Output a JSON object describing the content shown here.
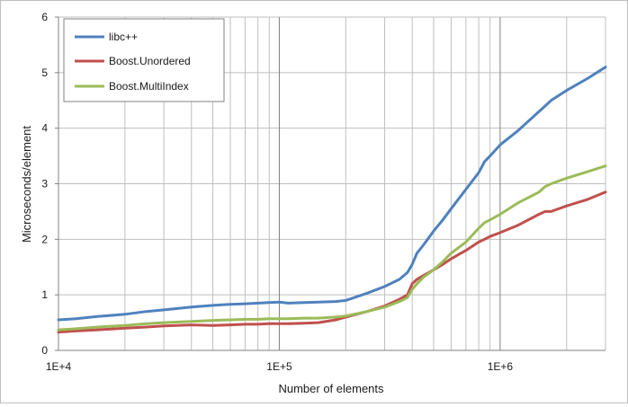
{
  "chart_data": {
    "type": "line",
    "title": "",
    "xlabel": "Number of elements",
    "ylabel": "Microseconds/element",
    "x_scale": "log",
    "xlim": [
      10000,
      3000000
    ],
    "ylim": [
      0,
      6
    ],
    "y_ticks": [
      0,
      1,
      2,
      3,
      4,
      5,
      6
    ],
    "y_tick_labels": [
      "0",
      "1",
      "2",
      "3",
      "4",
      "5",
      "6"
    ],
    "x_major_ticks": [
      10000,
      100000,
      1000000
    ],
    "x_tick_labels": [
      "1E+4",
      "1E+5",
      "1E+6"
    ],
    "grid": true,
    "legend_position": "top-left",
    "colors": {
      "grid": "#bfbfbf",
      "major_grid": "#808080",
      "axis": "#808080"
    },
    "x": [
      10000,
      12000,
      15000,
      20000,
      25000,
      30000,
      40000,
      50000,
      60000,
      70000,
      80000,
      90000,
      100000,
      110000,
      130000,
      150000,
      180000,
      200000,
      250000,
      300000,
      350000,
      380000,
      400000,
      420000,
      450000,
      500000,
      550000,
      600000,
      700000,
      800000,
      850000,
      900000,
      1000000,
      1200000,
      1500000,
      1600000,
      1700000,
      2000000,
      2500000,
      3000000
    ],
    "series": [
      {
        "name": "libc++",
        "color": "#4f81bd",
        "values": [
          0.55,
          0.57,
          0.61,
          0.65,
          0.7,
          0.73,
          0.78,
          0.81,
          0.83,
          0.84,
          0.85,
          0.86,
          0.87,
          0.85,
          0.86,
          0.87,
          0.88,
          0.9,
          1.03,
          1.15,
          1.28,
          1.4,
          1.55,
          1.75,
          1.9,
          2.15,
          2.35,
          2.55,
          2.9,
          3.2,
          3.4,
          3.5,
          3.7,
          3.95,
          4.3,
          4.4,
          4.5,
          4.68,
          4.9,
          5.1
        ]
      },
      {
        "name": "Boost.Unordered",
        "color": "#c0504d",
        "values": [
          0.33,
          0.35,
          0.37,
          0.4,
          0.42,
          0.44,
          0.46,
          0.45,
          0.46,
          0.47,
          0.47,
          0.48,
          0.48,
          0.48,
          0.49,
          0.5,
          0.55,
          0.6,
          0.7,
          0.8,
          0.92,
          1.0,
          1.2,
          1.28,
          1.35,
          1.45,
          1.55,
          1.65,
          1.8,
          1.95,
          2.0,
          2.05,
          2.12,
          2.25,
          2.45,
          2.5,
          2.5,
          2.6,
          2.72,
          2.85
        ]
      },
      {
        "name": "Boost.MultiIndex",
        "color": "#9bbb59",
        "values": [
          0.37,
          0.39,
          0.42,
          0.45,
          0.48,
          0.5,
          0.52,
          0.54,
          0.55,
          0.56,
          0.56,
          0.57,
          0.57,
          0.57,
          0.58,
          0.58,
          0.6,
          0.62,
          0.7,
          0.78,
          0.88,
          0.95,
          1.1,
          1.2,
          1.32,
          1.45,
          1.6,
          1.75,
          1.95,
          2.2,
          2.3,
          2.35,
          2.45,
          2.65,
          2.85,
          2.95,
          3.0,
          3.1,
          3.22,
          3.32
        ]
      }
    ]
  }
}
